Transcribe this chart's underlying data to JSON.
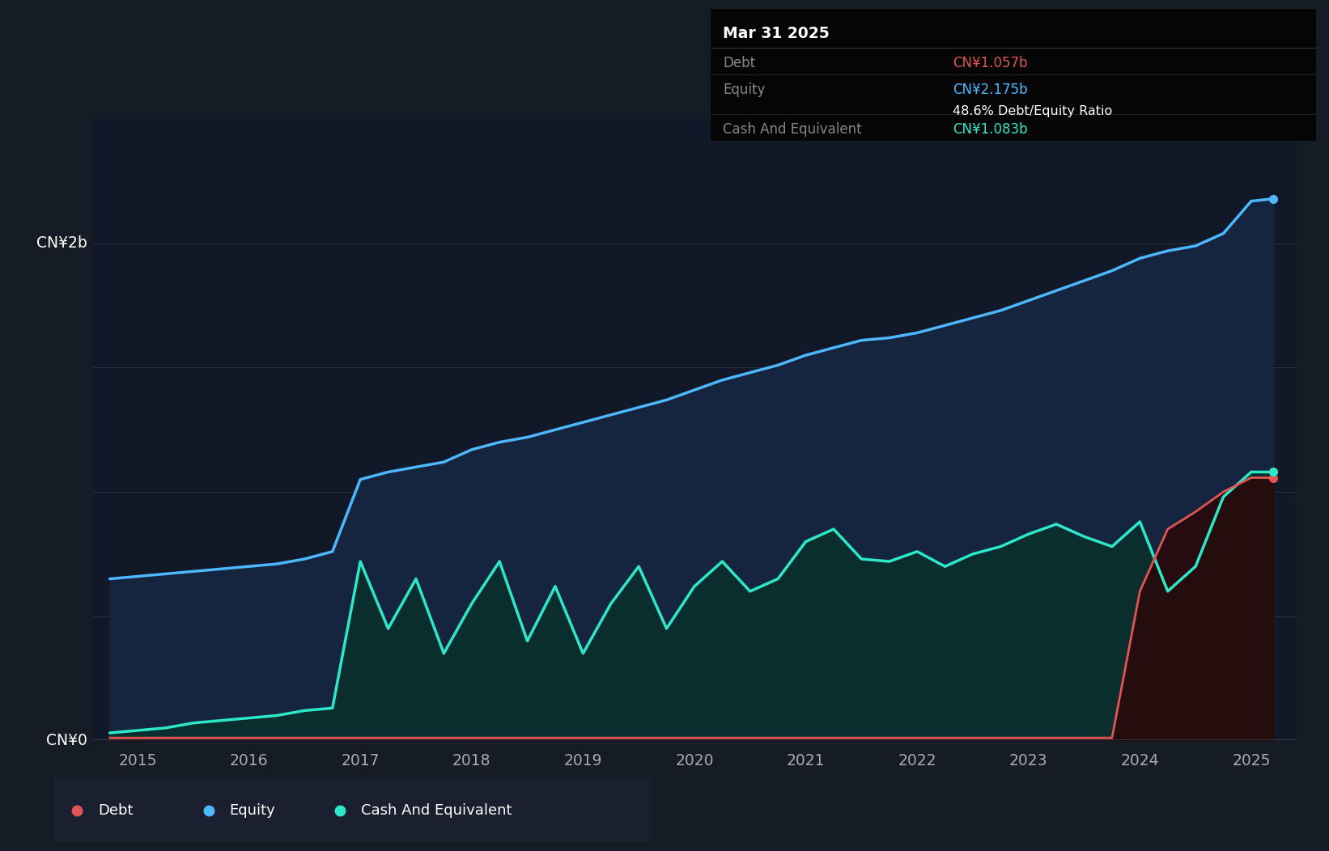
{
  "background_color": "#161c26",
  "plot_bg_color": "#111827",
  "ylabel_2b": "CN¥2b",
  "ylabel_0": "CN¥0",
  "debt_color": "#e05555",
  "equity_color": "#4db8ff",
  "cash_color": "#2de8c8",
  "fill_equity_color_top": "#1e3a5f",
  "fill_equity_color_bot": "#0d1a2e",
  "fill_cash_color": "#0d3535",
  "tooltip_bg": "#050505",
  "tooltip_date": "Mar 31 2025",
  "tooltip_debt_label": "Debt",
  "tooltip_debt_value": "CN¥1.057b",
  "tooltip_equity_label": "Equity",
  "tooltip_equity_value": "CN¥2.175b",
  "tooltip_ratio": "48.6% Debt/Equity Ratio",
  "tooltip_cash_label": "Cash And Equivalent",
  "tooltip_cash_value": "CN¥1.083b",
  "years": [
    2014.75,
    2015.0,
    2015.25,
    2015.5,
    2015.75,
    2016.0,
    2016.25,
    2016.5,
    2016.75,
    2017.0,
    2017.25,
    2017.5,
    2017.75,
    2018.0,
    2018.25,
    2018.5,
    2018.75,
    2019.0,
    2019.25,
    2019.5,
    2019.75,
    2020.0,
    2020.25,
    2020.5,
    2020.75,
    2021.0,
    2021.25,
    2021.5,
    2021.75,
    2022.0,
    2022.25,
    2022.5,
    2022.75,
    2023.0,
    2023.25,
    2023.5,
    2023.75,
    2024.0,
    2024.25,
    2024.5,
    2024.75,
    2025.0,
    2025.2
  ],
  "equity": [
    0.65,
    0.66,
    0.67,
    0.68,
    0.69,
    0.7,
    0.71,
    0.73,
    0.76,
    1.05,
    1.08,
    1.1,
    1.12,
    1.17,
    1.2,
    1.22,
    1.25,
    1.28,
    1.31,
    1.34,
    1.37,
    1.41,
    1.45,
    1.48,
    1.51,
    1.55,
    1.58,
    1.61,
    1.62,
    1.64,
    1.67,
    1.7,
    1.73,
    1.77,
    1.81,
    1.85,
    1.89,
    1.94,
    1.97,
    1.99,
    2.04,
    2.17,
    2.18
  ],
  "cash": [
    0.03,
    0.04,
    0.05,
    0.07,
    0.08,
    0.09,
    0.1,
    0.12,
    0.13,
    0.72,
    0.45,
    0.65,
    0.35,
    0.55,
    0.72,
    0.4,
    0.62,
    0.35,
    0.55,
    0.7,
    0.45,
    0.62,
    0.72,
    0.6,
    0.65,
    0.8,
    0.85,
    0.73,
    0.72,
    0.76,
    0.7,
    0.75,
    0.78,
    0.83,
    0.87,
    0.82,
    0.78,
    0.88,
    0.6,
    0.7,
    0.98,
    1.08,
    1.08
  ],
  "debt": [
    0.01,
    0.01,
    0.01,
    0.01,
    0.01,
    0.01,
    0.01,
    0.01,
    0.01,
    0.01,
    0.01,
    0.01,
    0.01,
    0.01,
    0.01,
    0.01,
    0.01,
    0.01,
    0.01,
    0.01,
    0.01,
    0.01,
    0.01,
    0.01,
    0.01,
    0.01,
    0.01,
    0.01,
    0.01,
    0.01,
    0.01,
    0.01,
    0.01,
    0.01,
    0.01,
    0.01,
    0.01,
    0.6,
    0.85,
    0.92,
    1.0,
    1.057,
    1.057
  ],
  "xlim": [
    2014.6,
    2025.4
  ],
  "ylim": [
    0.0,
    2.5
  ],
  "grid_color": "#2a3040",
  "tick_color": "#aaaaaa",
  "xtick_years": [
    2015,
    2016,
    2017,
    2018,
    2019,
    2020,
    2021,
    2022,
    2023,
    2024,
    2025
  ],
  "ytick_vals": [
    0.0,
    0.5,
    1.0,
    1.5,
    2.0
  ],
  "y2b_val": 2.0,
  "ymax": 2.5
}
